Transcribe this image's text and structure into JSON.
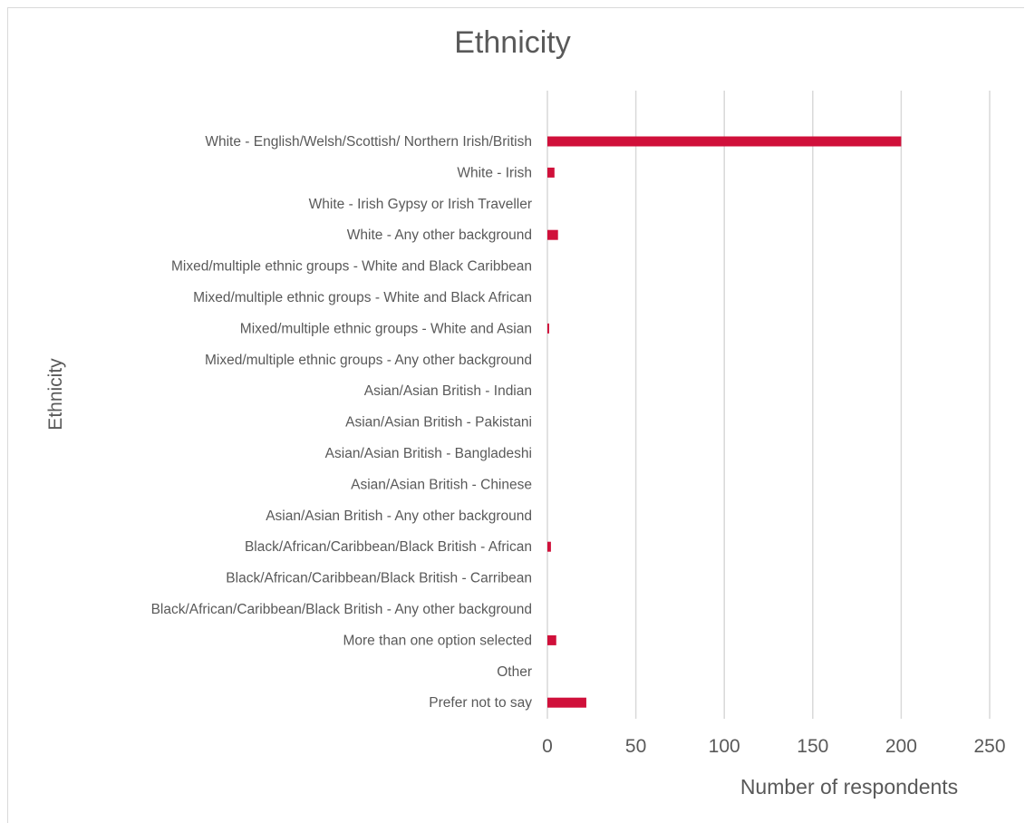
{
  "chart_data": {
    "type": "bar",
    "orientation": "horizontal",
    "title": "Ethnicity",
    "xlabel": "Number of respondents",
    "ylabel": "Ethnicity",
    "xlim": [
      0,
      250
    ],
    "xticks": [
      0,
      50,
      100,
      150,
      200,
      250
    ],
    "grid": true,
    "legend": "none",
    "bar_color": "#d0103a",
    "categories": [
      "White - English/Welsh/Scottish/ Northern Irish/British",
      "White - Irish",
      "White - Irish Gypsy or Irish Traveller",
      "White - Any other background",
      "Mixed/multiple ethnic groups - White and Black Caribbean",
      "Mixed/multiple ethnic groups - White and Black African",
      "Mixed/multiple ethnic groups - White and Asian",
      "Mixed/multiple ethnic groups - Any other background",
      "Asian/Asian British - Indian",
      "Asian/Asian British - Pakistani",
      "Asian/Asian British - Bangladeshi",
      "Asian/Asian British - Chinese",
      "Asian/Asian British - Any other background",
      "Black/African/Caribbean/Black British - African",
      "Black/African/Caribbean/Black British - Carribean",
      "Black/African/Caribbean/Black British - Any other background",
      "More than one option selected",
      "Other",
      "Prefer not to say"
    ],
    "values": [
      200,
      4,
      0,
      6,
      0,
      0,
      1,
      0,
      0,
      0,
      0,
      0,
      0,
      2,
      0,
      0,
      5,
      0,
      22
    ]
  }
}
